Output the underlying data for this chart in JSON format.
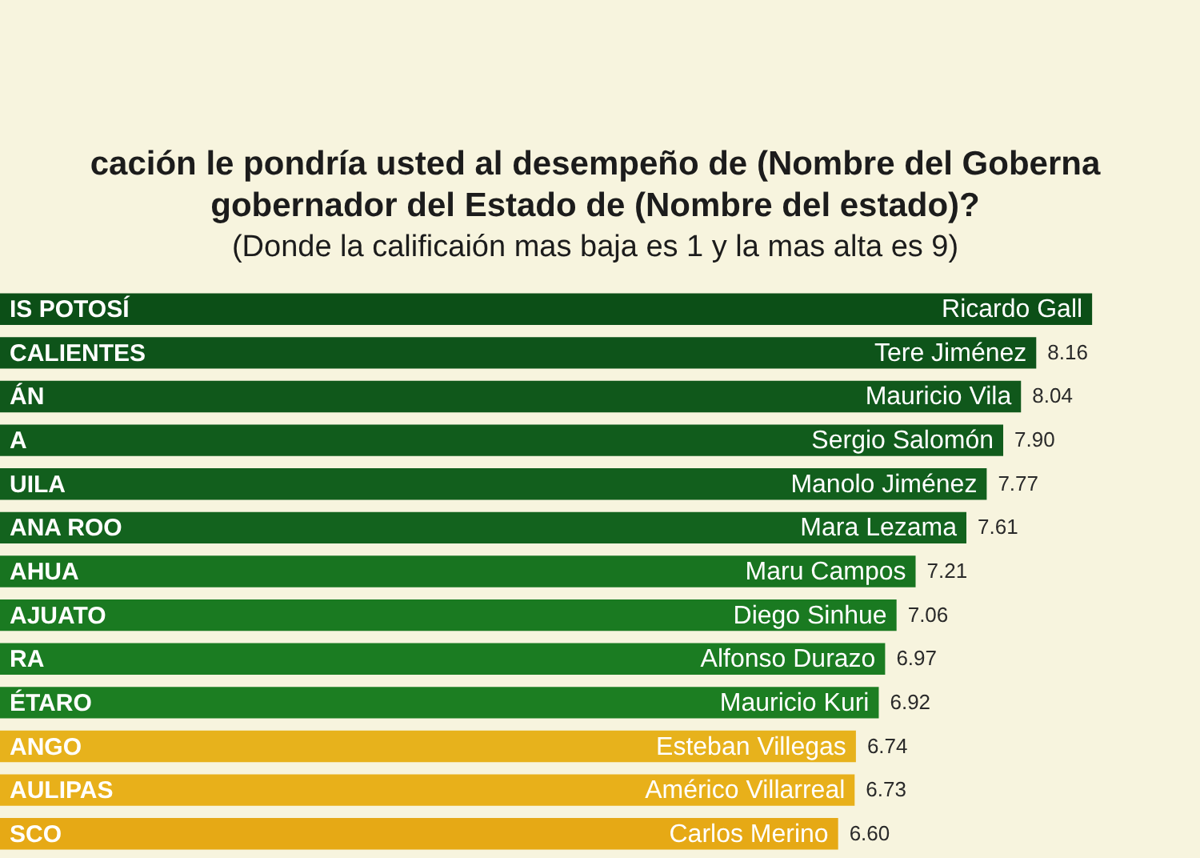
{
  "chart_data": {
    "type": "bar",
    "orientation": "horizontal",
    "title": "cación le pondría usted al desempeño de (Nombre del Goberna\ngobernador del Estado de (Nombre del estado)?",
    "subtitle": "(Donde la calificaión mas baja es 1 y la mas alta es 9)",
    "categories": [
      "IS POTOSÍ",
      "CALIENTES",
      "ÁN",
      "A",
      "UILA",
      "ANA ROO",
      "AHUA",
      "AJUATO",
      "RA",
      "ÉTARO",
      "ANGO",
      "AULIPAS",
      "SCO"
    ],
    "values": [
      8.6,
      8.16,
      8.04,
      7.9,
      7.77,
      7.61,
      7.21,
      7.06,
      6.97,
      6.92,
      6.74,
      6.73,
      6.6
    ],
    "colors": [
      "#0c4f17",
      "#0e541a",
      "#10581b",
      "#115c1c",
      "#125f1d",
      "#13631e",
      "#187420",
      "#1a7a21",
      "#1b7c22",
      "#1c7e22",
      "#e7b21c",
      "#e8b01a",
      "#e6a915"
    ],
    "value_labels": [
      null,
      "8.16",
      "8.04",
      "7.90",
      "7.77",
      "7.61",
      "7.21",
      "7.06",
      "6.97",
      "6.92",
      "6.74",
      "6.73",
      "6.60"
    ],
    "annotations": [
      {
        "text": "Ricardo Gall",
        "x": 8.6,
        "y": "IS POTOSÍ"
      },
      {
        "text": "Tere Jiménez",
        "x": 8.16,
        "y": "CALIENTES"
      },
      {
        "text": "Mauricio Vila",
        "x": 8.04,
        "y": "ÁN"
      },
      {
        "text": "Sergio Salomón",
        "x": 7.9,
        "y": "A"
      },
      {
        "text": "Manolo Jiménez",
        "x": 7.77,
        "y": "UILA"
      },
      {
        "text": "Mara Lezama",
        "x": 7.61,
        "y": "ANA ROO"
      },
      {
        "text": "Maru Campos",
        "x": 7.21,
        "y": "AHUA"
      },
      {
        "text": "Diego Sinhue",
        "x": 7.06,
        "y": "AJUATO"
      },
      {
        "text": "Alfonso Durazo",
        "x": 6.97,
        "y": "RA"
      },
      {
        "text": "Mauricio Kuri",
        "x": 6.92,
        "y": "ÉTARO"
      },
      {
        "text": "Esteban Villegas",
        "x": 6.74,
        "y": "ANGO"
      },
      {
        "text": "Américo Villarreal",
        "x": 6.73,
        "y": "AULIPAS"
      },
      {
        "text": "Carlos Merino",
        "x": 6.6,
        "y": "SCO"
      }
    ],
    "tick_labels": "y"
  }
}
